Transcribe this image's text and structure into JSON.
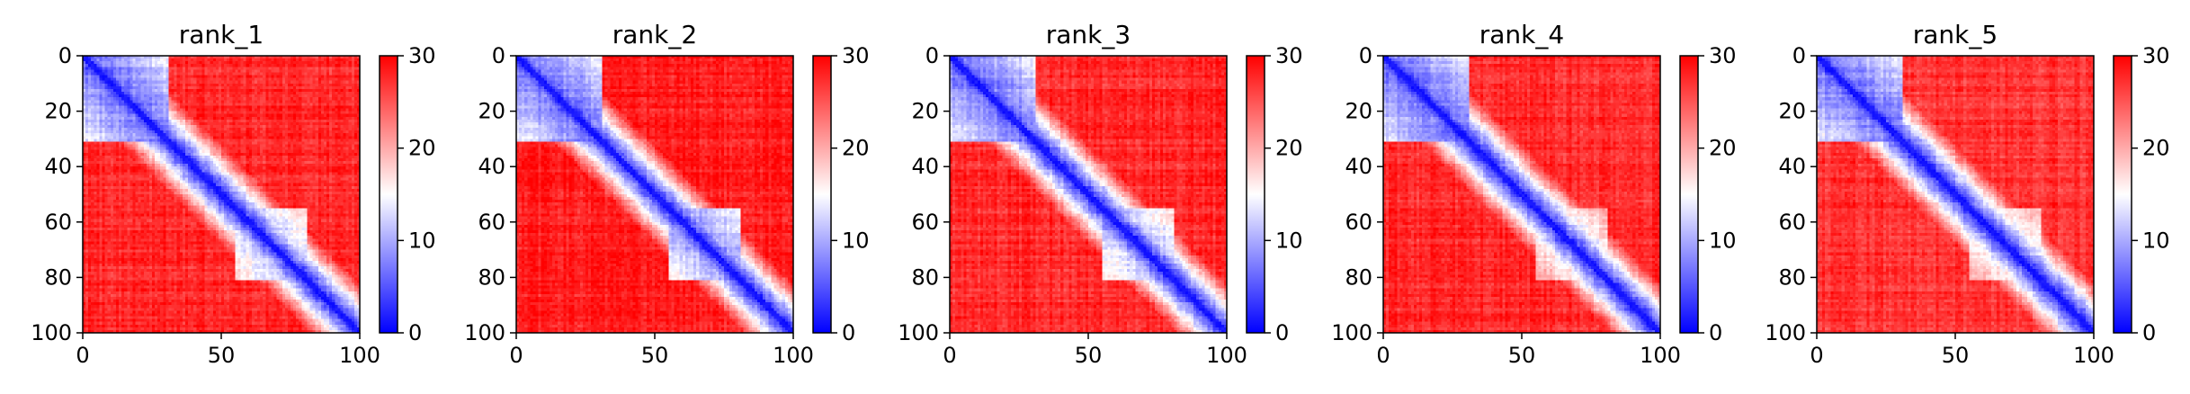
{
  "chart_data": [
    {
      "type": "heatmap",
      "title": "rank_1",
      "x_ticks": [
        "0",
        "50",
        "100"
      ],
      "y_ticks": [
        "0",
        "20",
        "40",
        "60",
        "80",
        "100"
      ],
      "xlim": [
        0,
        100
      ],
      "ylim": [
        100,
        0
      ],
      "grid_size": 100,
      "colormap": "bwr",
      "colorbar": {
        "range": [
          0,
          30
        ],
        "ticks": [
          "0",
          "10",
          "20",
          "30"
        ]
      },
      "structure": {
        "diagonal": "low values (blue) along the diagonal",
        "blocks": [
          {
            "range": [
              0,
              30
            ],
            "value_range": [
              6,
              14
            ]
          },
          {
            "range": [
              55,
              80
            ],
            "value_range": [
              10,
              18
            ]
          }
        ],
        "off_diagonal_value_range": [
          22,
          30
        ]
      }
    },
    {
      "type": "heatmap",
      "title": "rank_2",
      "x_ticks": [
        "0",
        "50",
        "100"
      ],
      "y_ticks": [
        "0",
        "20",
        "40",
        "60",
        "80",
        "100"
      ],
      "xlim": [
        0,
        100
      ],
      "ylim": [
        100,
        0
      ],
      "grid_size": 100,
      "colormap": "bwr",
      "colorbar": {
        "range": [
          0,
          30
        ],
        "ticks": [
          "0",
          "10",
          "20",
          "30"
        ]
      },
      "structure": {
        "diagonal": "low values (blue) along the diagonal",
        "blocks": [
          {
            "range": [
              0,
              30
            ],
            "value_range": [
              6,
              14
            ]
          },
          {
            "range": [
              55,
              80
            ],
            "value_range": [
              8,
              16
            ]
          }
        ],
        "off_diagonal_value_range": [
          24,
          30
        ]
      }
    },
    {
      "type": "heatmap",
      "title": "rank_3",
      "x_ticks": [
        "0",
        "50",
        "100"
      ],
      "y_ticks": [
        "0",
        "20",
        "40",
        "60",
        "80",
        "100"
      ],
      "xlim": [
        0,
        100
      ],
      "ylim": [
        100,
        0
      ],
      "grid_size": 100,
      "colormap": "bwr",
      "colorbar": {
        "range": [
          0,
          30
        ],
        "ticks": [
          "0",
          "10",
          "20",
          "30"
        ]
      },
      "structure": {
        "diagonal": "low values (blue) along the diagonal",
        "blocks": [
          {
            "range": [
              0,
              30
            ],
            "value_range": [
              6,
              14
            ]
          },
          {
            "range": [
              55,
              80
            ],
            "value_range": [
              10,
              18
            ]
          }
        ],
        "off_diagonal_value_range": [
          22,
          30
        ]
      }
    },
    {
      "type": "heatmap",
      "title": "rank_4",
      "x_ticks": [
        "0",
        "50",
        "100"
      ],
      "y_ticks": [
        "0",
        "20",
        "40",
        "60",
        "80",
        "100"
      ],
      "xlim": [
        0,
        100
      ],
      "ylim": [
        100,
        0
      ],
      "grid_size": 100,
      "colormap": "bwr",
      "colorbar": {
        "range": [
          0,
          30
        ],
        "ticks": [
          "0",
          "10",
          "20",
          "30"
        ]
      },
      "structure": {
        "diagonal": "low values (blue) along the diagonal",
        "blocks": [
          {
            "range": [
              0,
              30
            ],
            "value_range": [
              6,
              14
            ]
          },
          {
            "range": [
              55,
              80
            ],
            "value_range": [
              12,
              20
            ]
          }
        ],
        "off_diagonal_value_range": [
          22,
          30
        ]
      }
    },
    {
      "type": "heatmap",
      "title": "rank_5",
      "x_ticks": [
        "0",
        "50",
        "100"
      ],
      "y_ticks": [
        "0",
        "20",
        "40",
        "60",
        "80",
        "100"
      ],
      "xlim": [
        0,
        100
      ],
      "ylim": [
        100,
        0
      ],
      "grid_size": 100,
      "colormap": "bwr",
      "colorbar": {
        "range": [
          0,
          30
        ],
        "ticks": [
          "0",
          "10",
          "20",
          "30"
        ]
      },
      "structure": {
        "diagonal": "low values (blue) along the diagonal",
        "blocks": [
          {
            "range": [
              0,
              30
            ],
            "value_range": [
              6,
              14
            ]
          },
          {
            "range": [
              55,
              80
            ],
            "value_range": [
              12,
              20
            ]
          }
        ],
        "off_diagonal_value_range": [
          20,
          30
        ]
      }
    }
  ]
}
